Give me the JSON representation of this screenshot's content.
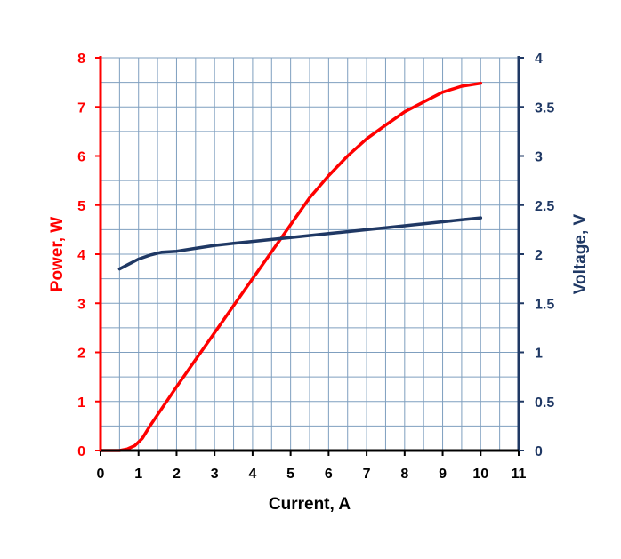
{
  "chart_data": {
    "type": "line",
    "title": "",
    "xlabel": "Current, A",
    "ylabel_left": "Power, W",
    "ylabel_right": "Voltage, V",
    "xlim": [
      0,
      11
    ],
    "ylim_left": [
      0,
      8
    ],
    "ylim_right": [
      0,
      4
    ],
    "x_ticks": [
      "0",
      "1",
      "2",
      "3",
      "4",
      "5",
      "6",
      "7",
      "8",
      "9",
      "10",
      "11"
    ],
    "y_left_ticks": [
      "0",
      "1",
      "2",
      "3",
      "4",
      "5",
      "6",
      "7",
      "8"
    ],
    "y_right_ticks": [
      "0",
      "0.5",
      "1",
      "1.5",
      "2",
      "2.5",
      "3",
      "3.5",
      "4"
    ],
    "grid": true,
    "colors": {
      "power": "#ff0000",
      "voltage": "#1f3864",
      "grid": "#7f9fbf"
    },
    "series": [
      {
        "name": "Power, W",
        "axis": "left",
        "color": "#ff0000",
        "x": [
          0,
          0.5,
          0.7,
          0.9,
          1.1,
          1.3,
          1.5,
          2,
          2.5,
          3,
          3.5,
          4,
          4.5,
          5,
          5.5,
          6,
          6.5,
          7,
          7.5,
          8,
          8.5,
          9,
          9.5,
          10
        ],
        "y": [
          0,
          0,
          0.03,
          0.1,
          0.25,
          0.5,
          0.73,
          1.3,
          1.85,
          2.4,
          2.95,
          3.5,
          4.05,
          4.6,
          5.15,
          5.6,
          6.0,
          6.35,
          6.63,
          6.9,
          7.1,
          7.3,
          7.42,
          7.48
        ]
      },
      {
        "name": "Voltage, V",
        "axis": "right",
        "color": "#1f3864",
        "x": [
          0.5,
          0.8,
          1,
          1.3,
          1.6,
          2,
          2.5,
          3,
          3.5,
          4,
          4.5,
          5,
          5.5,
          6,
          6.5,
          7,
          7.5,
          8,
          8.5,
          9,
          9.5,
          10
        ],
        "y": [
          1.85,
          1.91,
          1.95,
          1.99,
          2.02,
          2.03,
          2.06,
          2.09,
          2.11,
          2.13,
          2.15,
          2.17,
          2.19,
          2.21,
          2.23,
          2.25,
          2.27,
          2.29,
          2.31,
          2.33,
          2.35,
          2.37
        ]
      }
    ]
  }
}
